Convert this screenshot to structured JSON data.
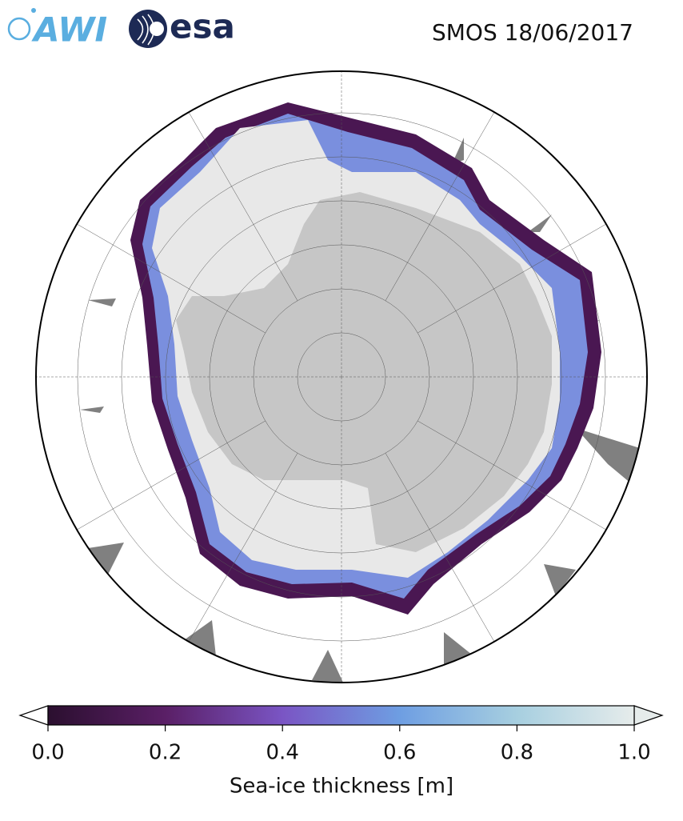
{
  "header": {
    "logos": [
      "AWI",
      "esa"
    ],
    "title": "SMOS 18/06/2017"
  },
  "colorbar": {
    "label": "Sea-ice thickness [m]",
    "lim": [
      0,
      1
    ],
    "ticks": [
      {
        "value": 0,
        "label": "0.0"
      },
      {
        "value": 0.2,
        "label": "0.2"
      },
      {
        "value": 0.4,
        "label": "0.4"
      },
      {
        "value": 0.6,
        "label": "0.6"
      },
      {
        "value": 0.8,
        "label": "0.8"
      },
      {
        "value": 1,
        "label": "1.0"
      }
    ],
    "colors": [
      "#2b0f2f",
      "#5a1f66",
      "#7a55c4",
      "#6e9ee2",
      "#a7cfe0",
      "#e6eceb"
    ]
  }
}
